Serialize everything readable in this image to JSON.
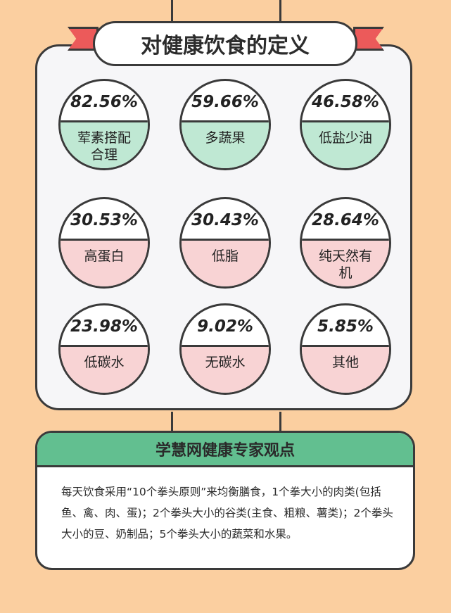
{
  "title": "对健康饮食的定义",
  "items": [
    {
      "percent": "82.56%",
      "label": "荤素搭配合理",
      "color": "#bfe8d3"
    },
    {
      "percent": "59.66%",
      "label": "多蔬果",
      "color": "#bfe8d3"
    },
    {
      "percent": "46.58%",
      "label": "低盐少油",
      "color": "#bfe8d3"
    },
    {
      "percent": "30.53%",
      "label": "高蛋白",
      "color": "#f8d3d4"
    },
    {
      "percent": "30.43%",
      "label": "低脂",
      "color": "#f8d3d4"
    },
    {
      "percent": "28.64%",
      "label": "纯天然有机",
      "color": "#f8d3d4"
    },
    {
      "percent": "23.98%",
      "label": "低碳水",
      "color": "#f8d3d4"
    },
    {
      "percent": "9.02%",
      "label": "无碳水",
      "color": "#f8d3d4"
    },
    {
      "percent": "5.85%",
      "label": "其他",
      "color": "#f8d3d4"
    }
  ],
  "expert": {
    "heading": "学慧网健康专家观点",
    "text": "每天饮食采用“10个拳头原则”来均衡膳食，1个拳大小的肉类(包括鱼、禽、肉、蛋)；2个拳头大小的谷类(主食、粗粮、薯类)；2个拳头大小的豆、奶制品；5个拳头大小的蔬菜和水果。"
  },
  "colors": {
    "background": "#fbcfa0",
    "ribbon": "#ec5a5a",
    "green": "#bfe8d3",
    "pink": "#f8d3d4",
    "expert_header": "#62bf90"
  }
}
